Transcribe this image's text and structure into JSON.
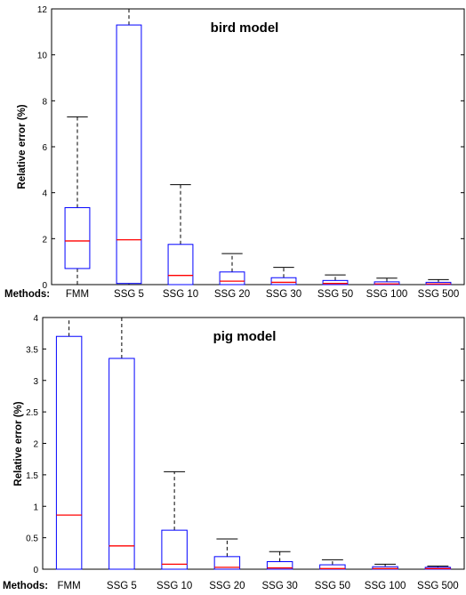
{
  "chart_data": [
    {
      "type": "boxplot",
      "title": "bird model",
      "ylabel": "Relative error (%)",
      "category_axis_label": "Methods:",
      "ylim": [
        0,
        12
      ],
      "yticks": [
        0,
        2,
        4,
        6,
        8,
        10,
        12
      ],
      "categories": [
        "FMM",
        "SSG 5",
        "SSG 10",
        "SSG 20",
        "SSG 30",
        "SSG 50",
        "SSG 100",
        "SSG 500"
      ],
      "boxes": [
        {
          "whisker_low": 0.0,
          "q1": 0.7,
          "median": 1.9,
          "q3": 3.35,
          "whisker_high": 7.3
        },
        {
          "whisker_low": 0.0,
          "q1": 0.05,
          "median": 1.95,
          "q3": 11.3,
          "whisker_high": 12.0
        },
        {
          "whisker_low": 0.0,
          "q1": 0.0,
          "median": 0.4,
          "q3": 1.75,
          "whisker_high": 4.35
        },
        {
          "whisker_low": 0.0,
          "q1": 0.0,
          "median": 0.15,
          "q3": 0.55,
          "whisker_high": 1.35
        },
        {
          "whisker_low": 0.0,
          "q1": 0.0,
          "median": 0.1,
          "q3": 0.3,
          "whisker_high": 0.75
        },
        {
          "whisker_low": 0.0,
          "q1": 0.0,
          "median": 0.05,
          "q3": 0.18,
          "whisker_high": 0.42
        },
        {
          "whisker_low": 0.0,
          "q1": 0.0,
          "median": 0.03,
          "q3": 0.12,
          "whisker_high": 0.28
        },
        {
          "whisker_low": 0.0,
          "q1": 0.0,
          "median": 0.03,
          "q3": 0.1,
          "whisker_high": 0.22
        }
      ],
      "grid": false,
      "colors": {
        "box": "#0000ff",
        "median": "#ff0000",
        "whisker": "#000000"
      }
    },
    {
      "type": "boxplot",
      "title": "pig model",
      "ylabel": "Relative error (%)",
      "category_axis_label": "Methods:",
      "ylim": [
        0,
        4
      ],
      "yticks": [
        0,
        0.5,
        1,
        1.5,
        2,
        2.5,
        3,
        3.5,
        4
      ],
      "categories": [
        "FMM",
        "SSG 5",
        "SSG 10",
        "SSG 20",
        "SSG 30",
        "SSG 50",
        "SSG 100",
        "SSG 500"
      ],
      "boxes": [
        {
          "whisker_low": 0.0,
          "q1": 0.0,
          "median": 0.86,
          "q3": 3.7,
          "whisker_high": 4.0
        },
        {
          "whisker_low": 0.0,
          "q1": 0.0,
          "median": 0.37,
          "q3": 3.35,
          "whisker_high": 4.0
        },
        {
          "whisker_low": 0.0,
          "q1": 0.0,
          "median": 0.08,
          "q3": 0.62,
          "whisker_high": 1.55
        },
        {
          "whisker_low": 0.0,
          "q1": 0.0,
          "median": 0.03,
          "q3": 0.2,
          "whisker_high": 0.48
        },
        {
          "whisker_low": 0.0,
          "q1": 0.0,
          "median": 0.02,
          "q3": 0.12,
          "whisker_high": 0.28
        },
        {
          "whisker_low": 0.0,
          "q1": 0.0,
          "median": 0.01,
          "q3": 0.07,
          "whisker_high": 0.15
        },
        {
          "whisker_low": 0.0,
          "q1": 0.0,
          "median": 0.01,
          "q3": 0.04,
          "whisker_high": 0.08
        },
        {
          "whisker_low": 0.0,
          "q1": 0.0,
          "median": 0.01,
          "q3": 0.03,
          "whisker_high": 0.05
        }
      ],
      "grid": false,
      "colors": {
        "box": "#0000ff",
        "median": "#ff0000",
        "whisker": "#000000"
      }
    }
  ]
}
